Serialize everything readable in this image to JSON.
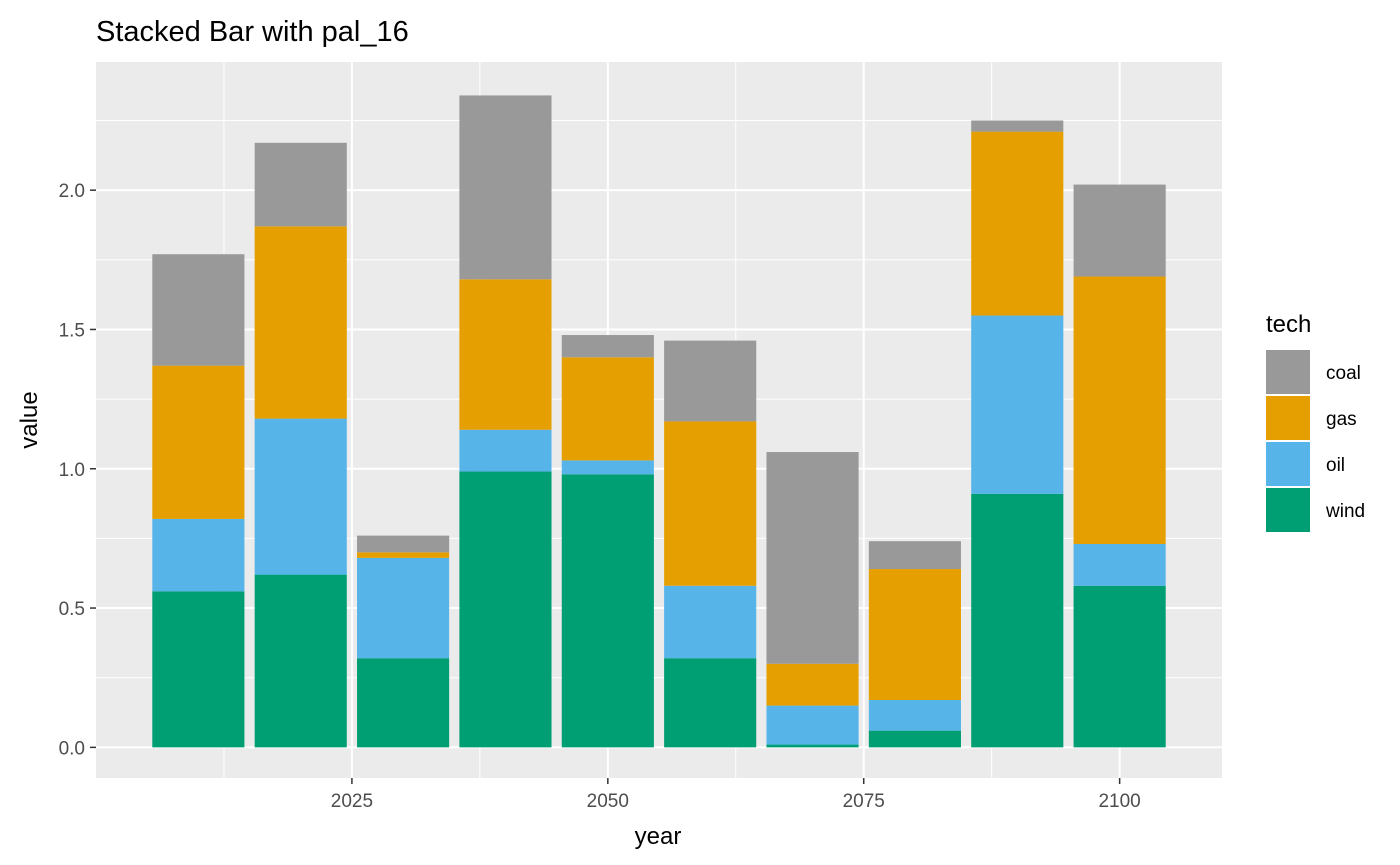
{
  "chart_data": {
    "type": "bar",
    "stacked": true,
    "title": "Stacked Bar with pal_16",
    "xlabel": "year",
    "ylabel": "value",
    "x": [
      2010,
      2020,
      2030,
      2040,
      2050,
      2060,
      2070,
      2080,
      2090,
      2100
    ],
    "xlim": [
      2000,
      2110
    ],
    "ylim": [
      -0.11,
      2.46
    ],
    "x_ticks": [
      "2025",
      "2050",
      "2075",
      "2100"
    ],
    "x_tick_values": [
      2025,
      2050,
      2075,
      2100
    ],
    "y_ticks": [
      "0.0",
      "0.5",
      "1.0",
      "1.5",
      "2.0"
    ],
    "y_tick_values": [
      0,
      0.5,
      1.0,
      1.5,
      2.0
    ],
    "grid": true,
    "legend": {
      "title": "tech",
      "position": "right"
    },
    "series": [
      {
        "name": "wind",
        "color": "#009E73",
        "values": [
          0.56,
          0.62,
          0.32,
          0.99,
          0.98,
          0.32,
          0.01,
          0.06,
          0.91,
          0.58
        ]
      },
      {
        "name": "oil",
        "color": "#56B4E9",
        "values": [
          0.26,
          0.56,
          0.36,
          0.15,
          0.05,
          0.26,
          0.14,
          0.11,
          0.64,
          0.15
        ]
      },
      {
        "name": "gas",
        "color": "#E69F00",
        "values": [
          0.55,
          0.69,
          0.02,
          0.54,
          0.37,
          0.59,
          0.15,
          0.47,
          0.66,
          0.96
        ]
      },
      {
        "name": "coal",
        "color": "#999999",
        "values": [
          0.4,
          0.3,
          0.06,
          0.66,
          0.08,
          0.29,
          0.76,
          0.1,
          0.04,
          0.33
        ]
      }
    ]
  }
}
